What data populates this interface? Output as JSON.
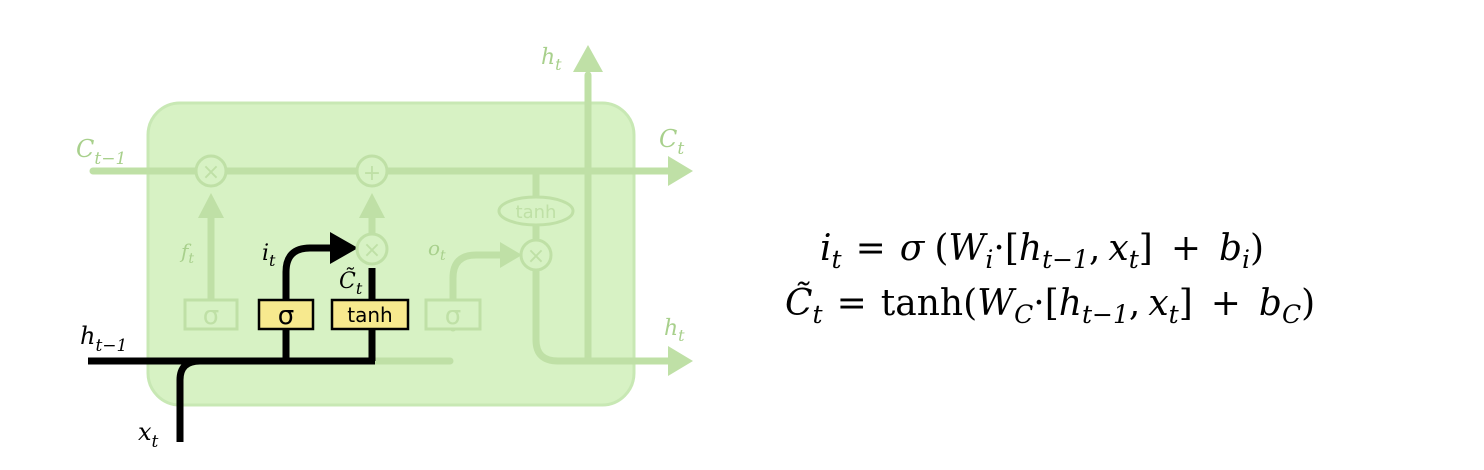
{
  "diagram": {
    "colors": {
      "cell_fill": "#d7f2c4",
      "cell_stroke": "#c8e8b4",
      "faded_line": "#bfe0a6",
      "faded_text": "#a8d08c",
      "active_line": "#000000",
      "gate_fill": "#f7e98e",
      "gate_stroke": "#000000"
    },
    "labels": {
      "c_prev": {
        "base": "C",
        "sub": "t−1"
      },
      "c_out": {
        "base": "C",
        "sub": "t"
      },
      "h_top": {
        "base": "h",
        "sub": "t"
      },
      "h_right": {
        "base": "h",
        "sub": "t"
      },
      "h_prev": {
        "base": "h",
        "sub": "t−1"
      },
      "x_in": {
        "base": "x",
        "sub": "t"
      },
      "f_gate": {
        "base": "f",
        "sub": "t"
      },
      "i_gate": {
        "base": "i",
        "sub": "t"
      },
      "c_tilde": {
        "base": "C̃",
        "sub": "t"
      },
      "o_gate": {
        "base": "o",
        "sub": "t"
      }
    },
    "ops": {
      "multiply": "×",
      "add": "+",
      "tanh_ellipse": "tanh"
    },
    "gates": {
      "forget_sigma": "σ",
      "input_sigma": "σ",
      "candidate_tanh": "tanh",
      "output_sigma": "σ"
    }
  },
  "equations": {
    "input_gate": {
      "lhs_base": "i",
      "lhs_sub": "t",
      "equals": "=",
      "func": "σ",
      "open": "(",
      "weight_base": "W",
      "weight_sub": "i",
      "dot": "·",
      "bracket_open": "[",
      "h_base": "h",
      "h_sub": "t−1",
      "comma": ",",
      "x_base": "x",
      "x_sub": "t",
      "bracket_close": "]",
      "plus": "+",
      "bias_base": "b",
      "bias_sub": "i",
      "close": ")"
    },
    "candidate": {
      "lhs_base": "C̃",
      "lhs_sub": "t",
      "equals": "=",
      "func": "tanh",
      "open": "(",
      "weight_base": "W",
      "weight_sub": "C",
      "dot": "·",
      "bracket_open": "[",
      "h_base": "h",
      "h_sub": "t−1",
      "comma": ",",
      "x_base": "x",
      "x_sub": "t",
      "bracket_close": "]",
      "plus": "+",
      "bias_base": "b",
      "bias_sub": "C",
      "close": ")"
    }
  }
}
